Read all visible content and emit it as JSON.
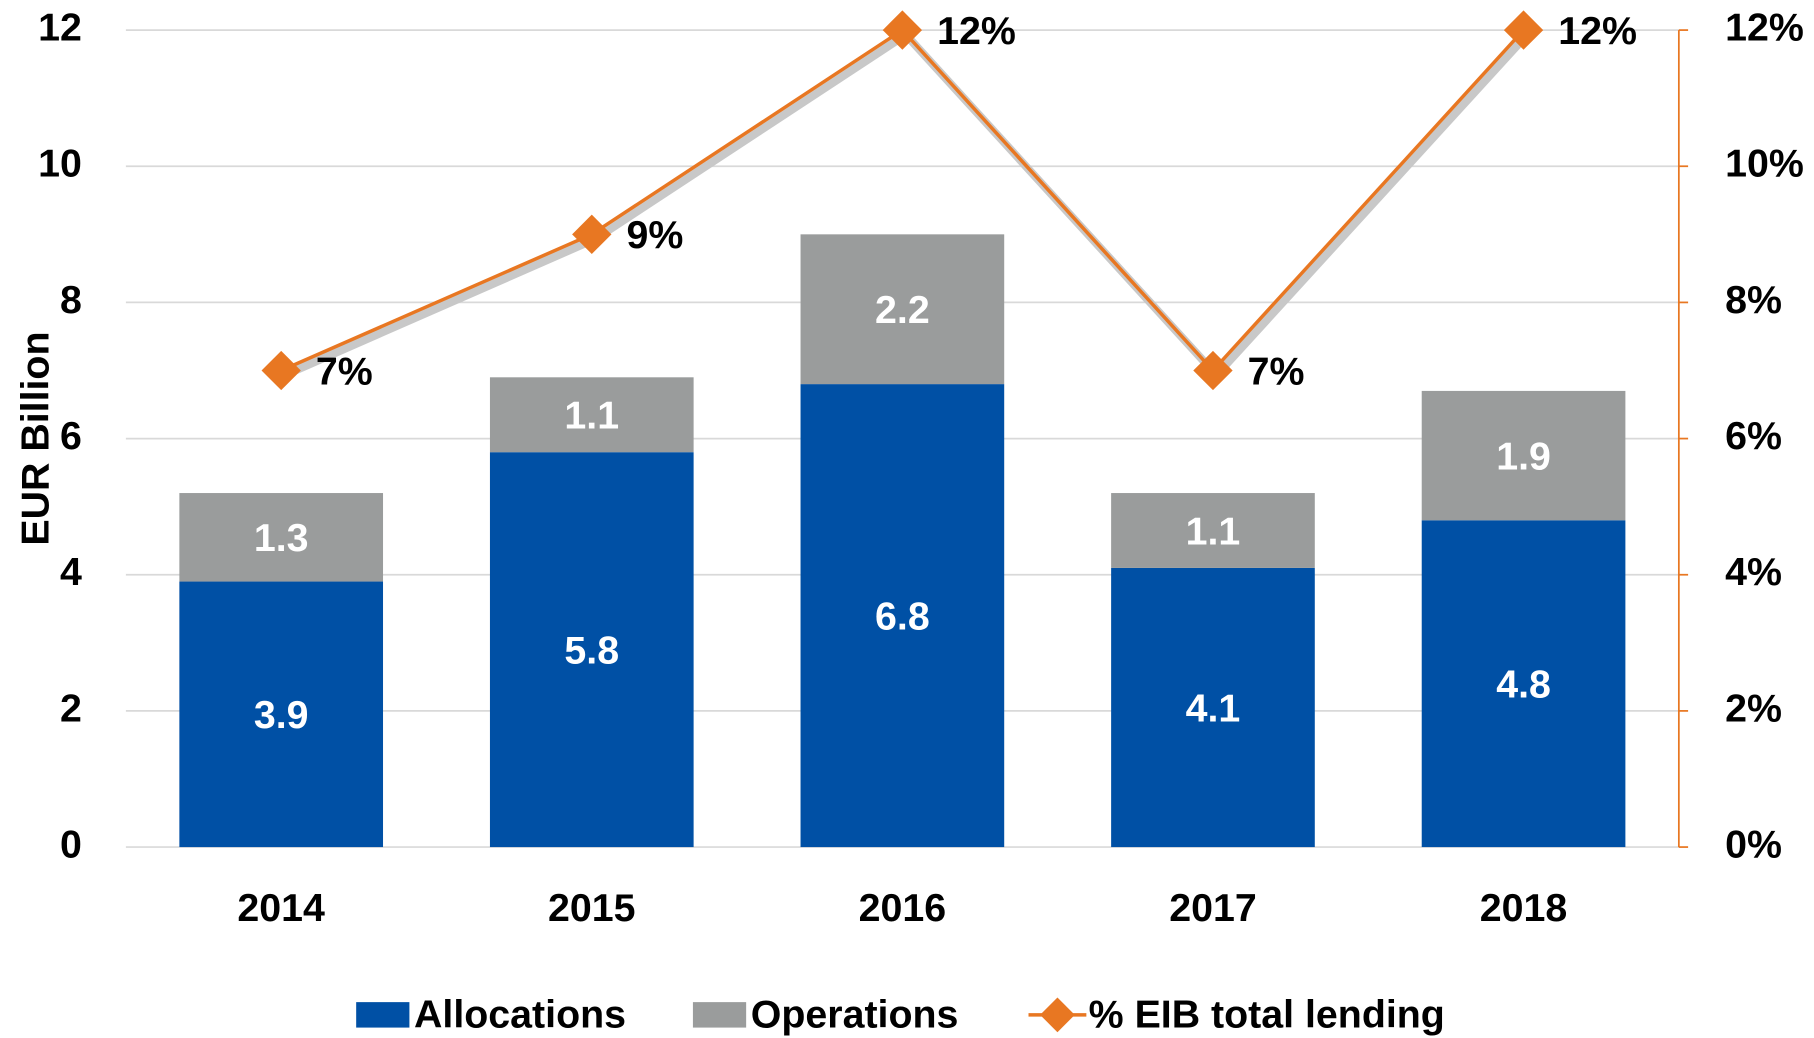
{
  "chart_data": {
    "type": "bar",
    "stacked": true,
    "grid": true,
    "y_label": "EUR Billion",
    "categories": [
      "2014",
      "2015",
      "2016",
      "2017",
      "2018"
    ],
    "series": [
      {
        "name": "Allocations",
        "color": "#0050a5",
        "values": [
          3.9,
          5.8,
          6.8,
          4.1,
          4.8
        ]
      },
      {
        "name": "Operations",
        "color": "#9a9c9c",
        "values": [
          1.3,
          1.1,
          2.2,
          1.1,
          1.9
        ]
      },
      {
        "name": "% EIB total lending",
        "type": "line",
        "axis": "y2",
        "color": "#e87722",
        "values": [
          7,
          9,
          12,
          7,
          12
        ],
        "value_labels": [
          "7%",
          "9%",
          "12%",
          "7%",
          "12%"
        ]
      }
    ],
    "ylim": [
      0,
      12
    ],
    "yticks": [
      0,
      2,
      4,
      6,
      8,
      10,
      12
    ],
    "y2lim": [
      0,
      12
    ],
    "y2ticks": [
      {
        "value": 0,
        "label": "0%"
      },
      {
        "value": 2,
        "label": "2%"
      },
      {
        "value": 4,
        "label": "4%"
      },
      {
        "value": 6,
        "label": "6%"
      },
      {
        "value": 8,
        "label": "8%"
      },
      {
        "value": 10,
        "label": "10%"
      },
      {
        "value": 12,
        "label": "12%"
      }
    ],
    "legend": "bottom"
  }
}
